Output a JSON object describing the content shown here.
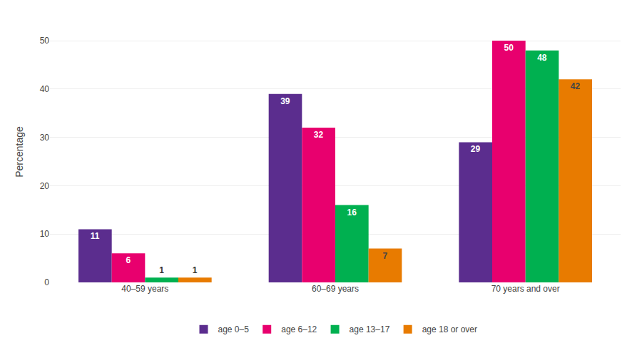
{
  "chart_data": {
    "type": "bar",
    "categories": [
      "40–59 years",
      "60–69 years",
      "70 years and over"
    ],
    "series": [
      {
        "name": "age 0–5",
        "color": "#5b2d8e",
        "values": [
          11,
          39,
          29
        ]
      },
      {
        "name": "age 6–12",
        "color": "#e8006e",
        "values": [
          6,
          32,
          50
        ]
      },
      {
        "name": "age 13–17",
        "color": "#00b050",
        "values": [
          1,
          16,
          48
        ]
      },
      {
        "name": "age 18 or over",
        "color": "#e87b00",
        "values": [
          1,
          7,
          42
        ]
      }
    ],
    "y_label": "Percentage",
    "ylim": [
      0,
      54
    ],
    "yticks": [
      0,
      10,
      20,
      30,
      40,
      50
    ],
    "grid": true,
    "legend": "bottom",
    "data_labels": true
  }
}
